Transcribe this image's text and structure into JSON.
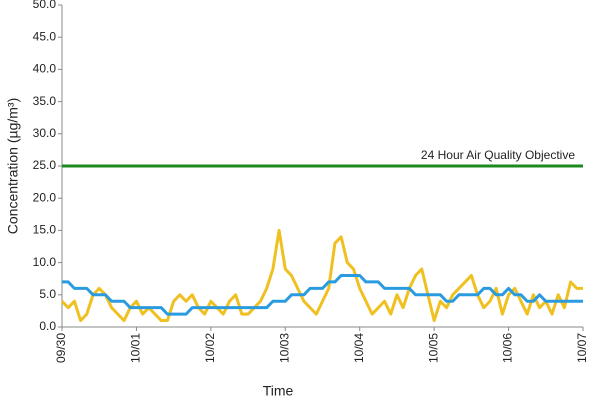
{
  "chart_data": {
    "type": "line",
    "x_label": "Time",
    "y_label": "Concentration (µg/m³)",
    "xlim": [
      0,
      168
    ],
    "xticks": [
      {
        "value": 0,
        "label": "09/30"
      },
      {
        "value": 24,
        "label": "10/01"
      },
      {
        "value": 48,
        "label": "10/02"
      },
      {
        "value": 72,
        "label": "10/03"
      },
      {
        "value": 96,
        "label": "10/04"
      },
      {
        "value": 120,
        "label": "10/05"
      },
      {
        "value": 144,
        "label": "10/06"
      },
      {
        "value": 168,
        "label": "10/07"
      }
    ],
    "ylim": [
      0,
      50
    ],
    "yticks": [
      {
        "value": 0,
        "label": "0.0"
      },
      {
        "value": 5,
        "label": "5.0"
      },
      {
        "value": 10,
        "label": "10.0"
      },
      {
        "value": 15,
        "label": "15.0"
      },
      {
        "value": 20,
        "label": "20.0"
      },
      {
        "value": 25,
        "label": "25.0"
      },
      {
        "value": 30,
        "label": "30.0"
      },
      {
        "value": 35,
        "label": "35.0"
      },
      {
        "value": 40,
        "label": "40.0"
      },
      {
        "value": 45,
        "label": "45.0"
      },
      {
        "value": 50,
        "label": "50.0"
      }
    ],
    "grid": false,
    "x": [
      0,
      2,
      4,
      6,
      8,
      10,
      12,
      14,
      16,
      18,
      20,
      22,
      24,
      26,
      28,
      30,
      32,
      34,
      36,
      38,
      40,
      42,
      44,
      46,
      48,
      50,
      52,
      54,
      56,
      58,
      60,
      62,
      64,
      66,
      68,
      70,
      72,
      74,
      76,
      78,
      80,
      82,
      84,
      86,
      88,
      90,
      92,
      94,
      96,
      98,
      100,
      102,
      104,
      106,
      108,
      110,
      112,
      114,
      116,
      118,
      120,
      122,
      124,
      126,
      128,
      130,
      132,
      134,
      136,
      138,
      140,
      142,
      144,
      146,
      148,
      150,
      152,
      154,
      156,
      158,
      160,
      162,
      164,
      166,
      168
    ],
    "series": [
      {
        "color": "#f0c020",
        "values": [
          4,
          3,
          4,
          1,
          2,
          5,
          6,
          5,
          3,
          2,
          1,
          3,
          4,
          2,
          3,
          2,
          1,
          1,
          4,
          5,
          4,
          5,
          3,
          2,
          4,
          3,
          2,
          4,
          5,
          2,
          2,
          3,
          4,
          6,
          9,
          15,
          9,
          8,
          6,
          4,
          3,
          2,
          4,
          6,
          13,
          14,
          10,
          9,
          6,
          4,
          2,
          3,
          4,
          2,
          5,
          3,
          6,
          8,
          9,
          5,
          1,
          4,
          3,
          5,
          6,
          7,
          8,
          5,
          3,
          4,
          6,
          2,
          5,
          6,
          4,
          2,
          5,
          3,
          4,
          2,
          5,
          3,
          7,
          6,
          6
        ]
      },
      {
        "color": "#2b9be0",
        "values": [
          7,
          7,
          6,
          6,
          6,
          5,
          5,
          5,
          4,
          4,
          4,
          3,
          3,
          3,
          3,
          3,
          3,
          2,
          2,
          2,
          2,
          3,
          3,
          3,
          3,
          3,
          3,
          3,
          3,
          3,
          3,
          3,
          3,
          3,
          4,
          4,
          4,
          5,
          5,
          5,
          6,
          6,
          6,
          7,
          7,
          8,
          8,
          8,
          8,
          7,
          7,
          7,
          6,
          6,
          6,
          6,
          6,
          5,
          5,
          5,
          5,
          5,
          4,
          4,
          5,
          5,
          5,
          5,
          6,
          6,
          5,
          5,
          6,
          5,
          5,
          4,
          4,
          5,
          4,
          4,
          4,
          4,
          4,
          4,
          4
        ]
      }
    ],
    "objective": {
      "label": "24 Hour Air Quality Objective",
      "value": 25,
      "color": "#1e8a1e"
    }
  }
}
